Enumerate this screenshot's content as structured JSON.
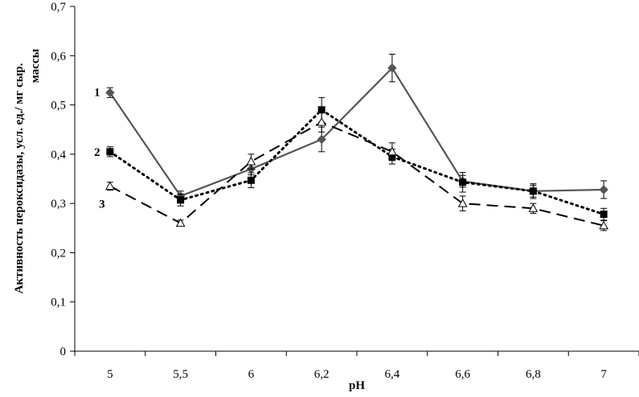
{
  "chart_data": {
    "type": "line",
    "title": "",
    "xlabel": "pH",
    "ylabel": "Активность пероксидазы, усл. ед./ мг сыр. массы",
    "categories": [
      "5",
      "5,5",
      "6",
      "6,2",
      "6,4",
      "6,6",
      "6,8",
      "7"
    ],
    "ylim": [
      0,
      0.7
    ],
    "yticks": [
      "0",
      "0,1",
      "0,2",
      "0,3",
      "0,4",
      "0,5",
      "0,6",
      "0,7"
    ],
    "grid": false,
    "legend": "none",
    "series": [
      {
        "name": "1",
        "values": [
          0.525,
          0.315,
          0.37,
          0.43,
          0.575,
          0.345,
          0.325,
          0.328
        ],
        "errors": [
          0.01,
          0.01,
          0.012,
          0.025,
          0.028,
          0.012,
          0.015,
          0.018
        ],
        "style": "solid",
        "marker": "diamond",
        "color": "#555555"
      },
      {
        "name": "2",
        "values": [
          0.405,
          0.307,
          0.347,
          0.49,
          0.395,
          0.343,
          0.325,
          0.278
        ],
        "errors": [
          0.01,
          0.012,
          0.015,
          0.025,
          0.015,
          0.02,
          0.012,
          0.012
        ],
        "style": "dotted",
        "marker": "square",
        "color": "#000000"
      },
      {
        "name": "3",
        "values": [
          0.335,
          0.26,
          0.385,
          0.465,
          0.405,
          0.3,
          0.29,
          0.255
        ],
        "errors": [
          0.008,
          0.006,
          0.015,
          0.02,
          0.018,
          0.015,
          0.01,
          0.01
        ],
        "style": "dashed",
        "marker": "triangle",
        "color": "#000000"
      }
    ]
  }
}
